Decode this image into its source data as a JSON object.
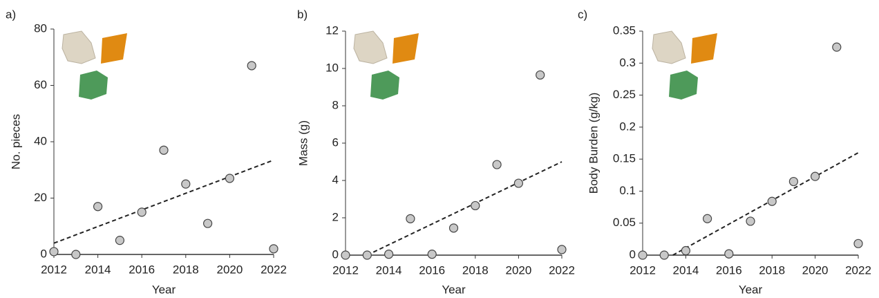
{
  "chart_data": [
    {
      "type": "scatter",
      "panel_label": "a)",
      "xlabel": "Year",
      "ylabel": "No. pieces",
      "x": [
        2012,
        2013,
        2014,
        2015,
        2016,
        2017,
        2018,
        2019,
        2020,
        2021,
        2022
      ],
      "values": [
        1,
        0,
        17,
        5,
        15,
        37,
        25,
        11,
        27,
        67,
        2
      ],
      "color": "#c8c8c8",
      "trendline": {
        "x": [
          2012,
          2022
        ],
        "y": [
          4,
          33.5
        ]
      },
      "xlim": [
        2012,
        2022
      ],
      "xticks": [
        2012,
        2014,
        2016,
        2018,
        2020,
        2022
      ],
      "ylim": [
        0,
        80
      ],
      "yticks": [
        0,
        20,
        40,
        60,
        80
      ]
    },
    {
      "type": "scatter",
      "panel_label": "b)",
      "xlabel": "Year",
      "ylabel": "Mass (g)",
      "x": [
        2012,
        2013,
        2014,
        2015,
        2016,
        2017,
        2018,
        2019,
        2020,
        2021,
        2022
      ],
      "values": [
        0,
        0,
        0.05,
        1.95,
        0.05,
        1.45,
        2.65,
        4.85,
        3.85,
        9.65,
        0.3
      ],
      "color": "#c8c8c8",
      "trendline": {
        "x": [
          2013,
          2022
        ],
        "y": [
          0,
          5
        ]
      },
      "xlim": [
        2012,
        2022
      ],
      "xticks": [
        2012,
        2014,
        2016,
        2018,
        2020,
        2022
      ],
      "ylim": [
        0,
        12
      ],
      "yticks": [
        0,
        2,
        4,
        6,
        8,
        10,
        12
      ]
    },
    {
      "type": "scatter",
      "panel_label": "c)",
      "xlabel": "Year",
      "ylabel": "Body Burden (g/kg)",
      "x": [
        2012,
        2013,
        2014,
        2015,
        2016,
        2017,
        2018,
        2019,
        2020,
        2021,
        2022
      ],
      "values": [
        0,
        0,
        0.007,
        0.057,
        0.002,
        0.053,
        0.084,
        0.115,
        0.123,
        0.325,
        0.018
      ],
      "color": "#c8c8c8",
      "trendline": {
        "x": [
          2013.4,
          2022
        ],
        "y": [
          0,
          0.16
        ]
      },
      "xlim": [
        2012,
        2022
      ],
      "xticks": [
        2012,
        2014,
        2016,
        2018,
        2020,
        2022
      ],
      "ylim": [
        0,
        0.35
      ],
      "yticks": [
        0,
        0.05,
        0.1,
        0.15,
        0.2,
        0.25,
        0.3,
        0.35
      ]
    }
  ]
}
